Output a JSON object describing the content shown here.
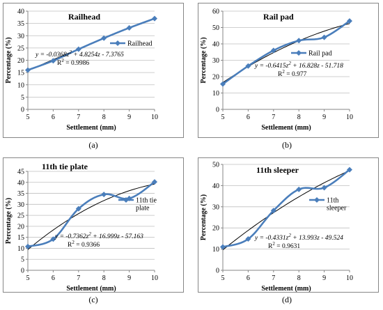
{
  "colors": {
    "series": "#4a7ebb",
    "trend": "#000000",
    "frame": "#868686",
    "grid": "#bfbfbf"
  },
  "chart_data": [
    {
      "type": "line",
      "caption": "(a)",
      "title": "Railhead",
      "xlabel": "Settlement (mm)",
      "ylabel": "Percentage (%)",
      "xlim": [
        5,
        10
      ],
      "ylim": [
        0,
        40
      ],
      "yticks": [
        0,
        5,
        10,
        15,
        20,
        25,
        30,
        35,
        40
      ],
      "xticks": [
        5,
        6,
        7,
        8,
        9,
        10
      ],
      "grid": "horizontal",
      "legend": "right",
      "series": [
        {
          "name": "Railhead",
          "x": [
            5,
            6,
            7,
            8,
            9,
            10
          ],
          "values": [
            16.0,
            19.8,
            24.5,
            29.0,
            33.2,
            37.0
          ]
        }
      ],
      "trendline": {
        "type": "polynomial-2",
        "coef": [
          -0.0368,
          4.8254,
          -7.3765
        ]
      },
      "annotations": [
        "y = -0.0368z² + 4.8254z - 7.3765",
        "R² = 0.9986"
      ]
    },
    {
      "type": "line",
      "caption": "(b)",
      "title": "Rail pad",
      "xlabel": "Settlement (mm)",
      "ylabel": "Percentage (%)",
      "xlim": [
        5,
        10
      ],
      "ylim": [
        0,
        60
      ],
      "yticks": [
        0,
        10,
        20,
        30,
        40,
        50,
        60
      ],
      "xticks": [
        5,
        6,
        7,
        8,
        9,
        10
      ],
      "grid": "horizontal",
      "legend": "right",
      "series": [
        {
          "name": "Rail pad",
          "x": [
            5,
            6,
            7,
            8,
            9,
            10
          ],
          "values": [
            15.5,
            26.5,
            36.0,
            42.0,
            44.0,
            54.0
          ]
        }
      ],
      "trendline": {
        "type": "polynomial-2",
        "coef": [
          -0.6415,
          16.828,
          -51.718
        ]
      },
      "annotations": [
        "y = -0.6415z² + 16.828z - 51.718",
        "R² = 0.977"
      ]
    },
    {
      "type": "line",
      "caption": "(c)",
      "title": "11th tie plate",
      "xlabel": "Settlement (mm)",
      "ylabel": "Percentage (%)",
      "xlim": [
        5,
        10
      ],
      "ylim": [
        0,
        45
      ],
      "yticks": [
        0,
        5,
        10,
        15,
        20,
        25,
        30,
        35,
        40,
        45
      ],
      "xticks": [
        5,
        6,
        7,
        8,
        9,
        10
      ],
      "grid": "horizontal",
      "legend": "right",
      "series": [
        {
          "name": "11th tie plate",
          "x": [
            5,
            6,
            7,
            8,
            9,
            10
          ],
          "values": [
            10.8,
            14.2,
            28.0,
            34.5,
            32.7,
            40.2
          ]
        }
      ],
      "trendline": {
        "type": "polynomial-2",
        "coef": [
          -0.7362,
          16.999,
          -57.163
        ]
      },
      "annotations": [
        "y = -0.7362z² + 16.999z - 57.163",
        "R² = 0.9366"
      ]
    },
    {
      "type": "line",
      "caption": "(d)",
      "title": "11th sleeper",
      "xlabel": "Settlement (mm)",
      "ylabel": "Percentage (%)",
      "xlim": [
        5,
        10
      ],
      "ylim": [
        0,
        50
      ],
      "yticks": [
        0,
        10,
        20,
        30,
        40,
        50
      ],
      "xticks": [
        5,
        6,
        7,
        8,
        9,
        10
      ],
      "grid": "horizontal",
      "legend": "right",
      "series": [
        {
          "name": "11th sleeper",
          "x": [
            5,
            6,
            7,
            8,
            9,
            10
          ],
          "values": [
            11.0,
            14.8,
            28.2,
            38.2,
            39.0,
            47.5
          ]
        }
      ],
      "trendline": {
        "type": "polynomial-2",
        "coef": [
          -0.4331,
          13.993,
          -49.524
        ]
      },
      "annotations": [
        "y = -0.4331z² + 13.993z - 49.524",
        "R² = 0.9631"
      ]
    }
  ]
}
